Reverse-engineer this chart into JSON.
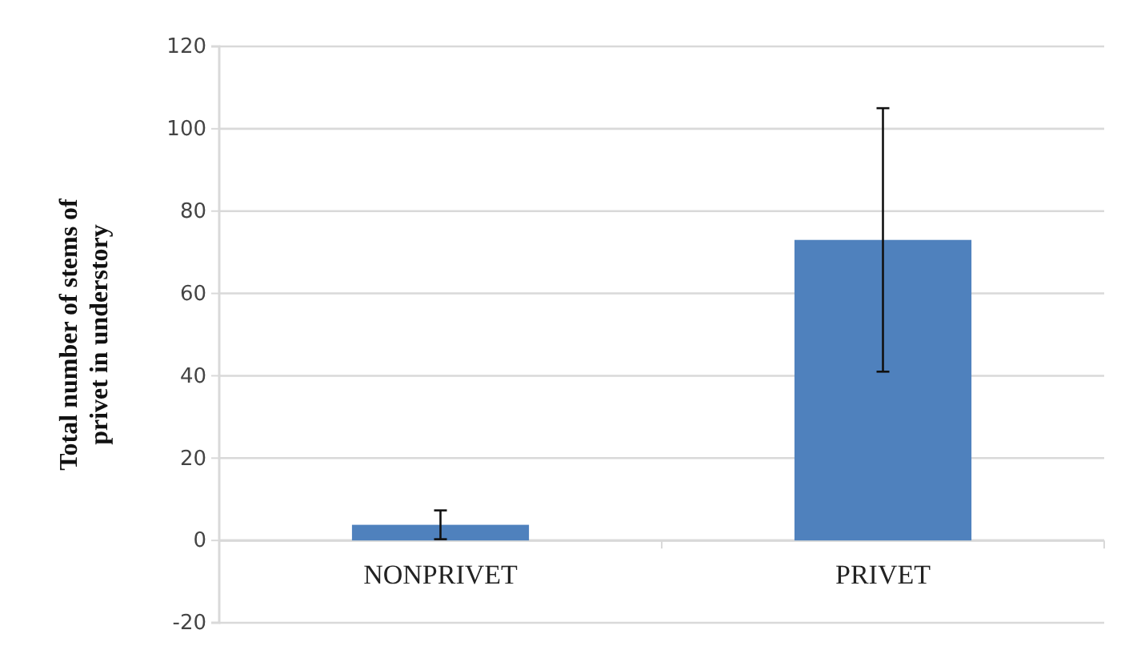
{
  "chart_data": {
    "type": "bar",
    "ylabel": "Total number of stems of privet in understory",
    "categories": [
      "NONPRIVET",
      "PRIVET"
    ],
    "values": [
      3.8,
      73
    ],
    "errors": [
      3.5,
      32
    ],
    "color": "#4f81bd",
    "ylim": [
      -20,
      120
    ],
    "yticks": [
      -20,
      0,
      20,
      40,
      60,
      80,
      100,
      120
    ],
    "grid": "y"
  }
}
